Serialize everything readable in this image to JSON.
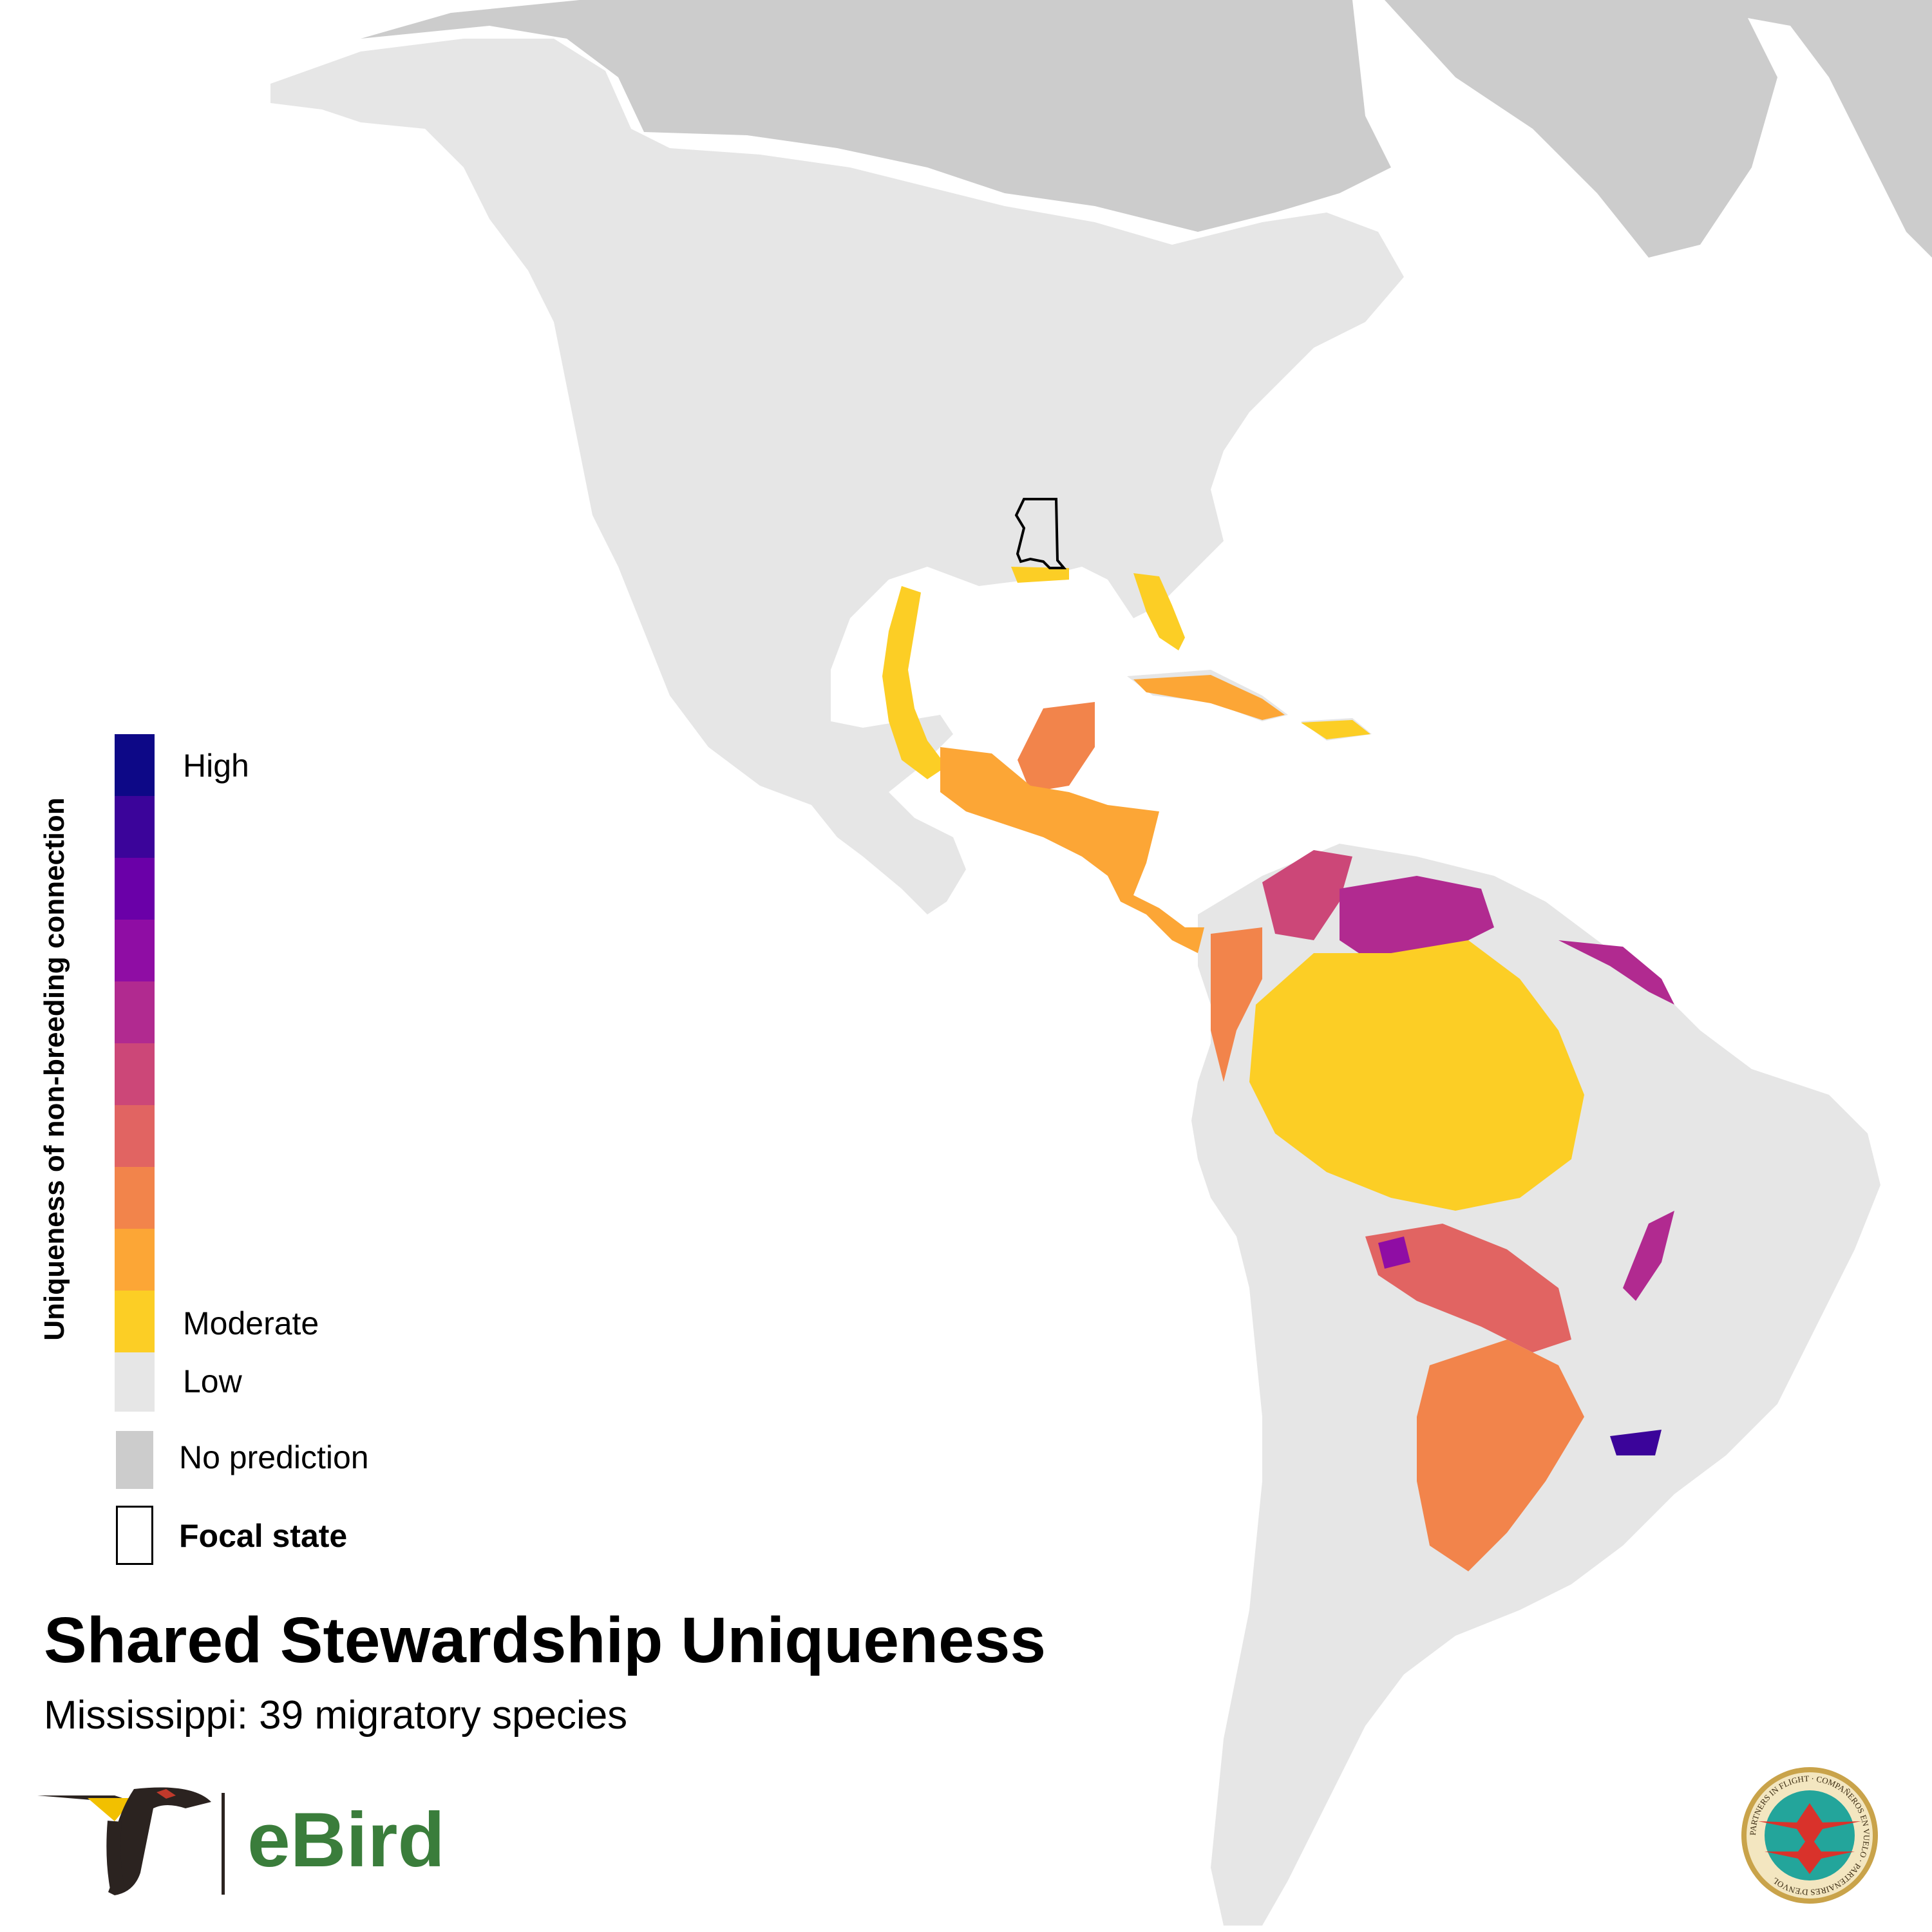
{
  "title": "Shared Stewardship Uniqueness",
  "subtitle": "Mississippi: 39 migratory species",
  "legend": {
    "axis_title": "Uniqueness of non-breeding connection",
    "high_label": "High",
    "moderate_label": "Moderate",
    "low_label": "Low",
    "no_prediction_label": "No prediction",
    "focal_state_label": "Focal state",
    "ramp_colors": [
      "#0d0887",
      "#3b049a",
      "#6a00a8",
      "#8f0da4",
      "#b12a90",
      "#cc4778",
      "#e16462",
      "#f2844b",
      "#fca636",
      "#fcce25"
    ],
    "low_color": "#e6e6e6",
    "no_prediction_color": "#cccccc"
  },
  "map": {
    "focal_state": "Mississippi",
    "land_low_color": "#e6e6e6",
    "no_prediction_color": "#cccccc",
    "water_color": "#ffffff"
  },
  "logos": {
    "ebird_text": "eBird",
    "pif_seal_text": "PARTNERS IN FLIGHT · COMPAÑEROS EN VUELO · PARTENAIRES D'ENVOL"
  }
}
